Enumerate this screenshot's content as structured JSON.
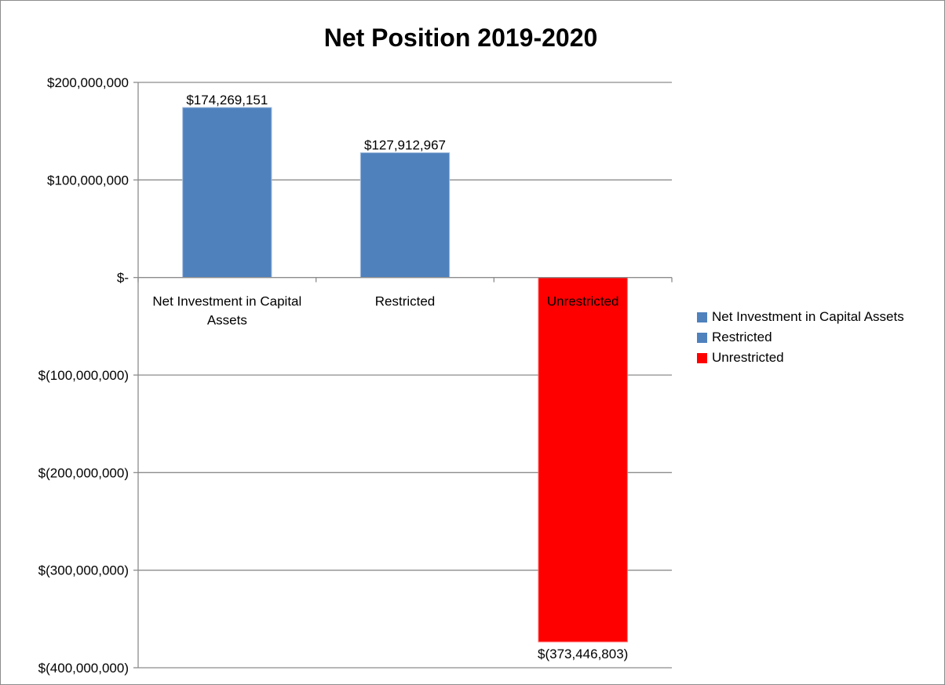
{
  "chart_data": {
    "type": "bar",
    "title": "Net Position 2019-2020",
    "categories": [
      "Net Investment in Capital Assets",
      "Restricted",
      "Unrestricted"
    ],
    "values": [
      174269151,
      127912967,
      -373446803
    ],
    "value_labels": [
      "$174,269,151",
      "$127,912,967",
      "$(373,446,803)"
    ],
    "colors": [
      "#4f81bd",
      "#4f81bd",
      "#ff0000"
    ],
    "ylim": [
      -400000000,
      200000000
    ],
    "yticks": [
      200000000,
      100000000,
      0,
      -100000000,
      -200000000,
      -300000000,
      -400000000
    ],
    "ytick_labels": [
      "$200,000,000",
      "$100,000,000",
      "$-",
      "$(100,000,000)",
      "$(200,000,000)",
      "$(300,000,000)",
      "$(400,000,000)"
    ],
    "category_label_lines": [
      [
        "Net Investment in Capital",
        "Assets"
      ],
      [
        "Restricted"
      ],
      [
        "Unrestricted"
      ]
    ],
    "grid": true,
    "legend_position": "right",
    "legend": [
      {
        "label": "Net Investment in Capital Assets",
        "color": "#4f81bd"
      },
      {
        "label": "Restricted",
        "color": "#4f81bd"
      },
      {
        "label": "Unrestricted",
        "color": "#ff0000"
      }
    ]
  }
}
